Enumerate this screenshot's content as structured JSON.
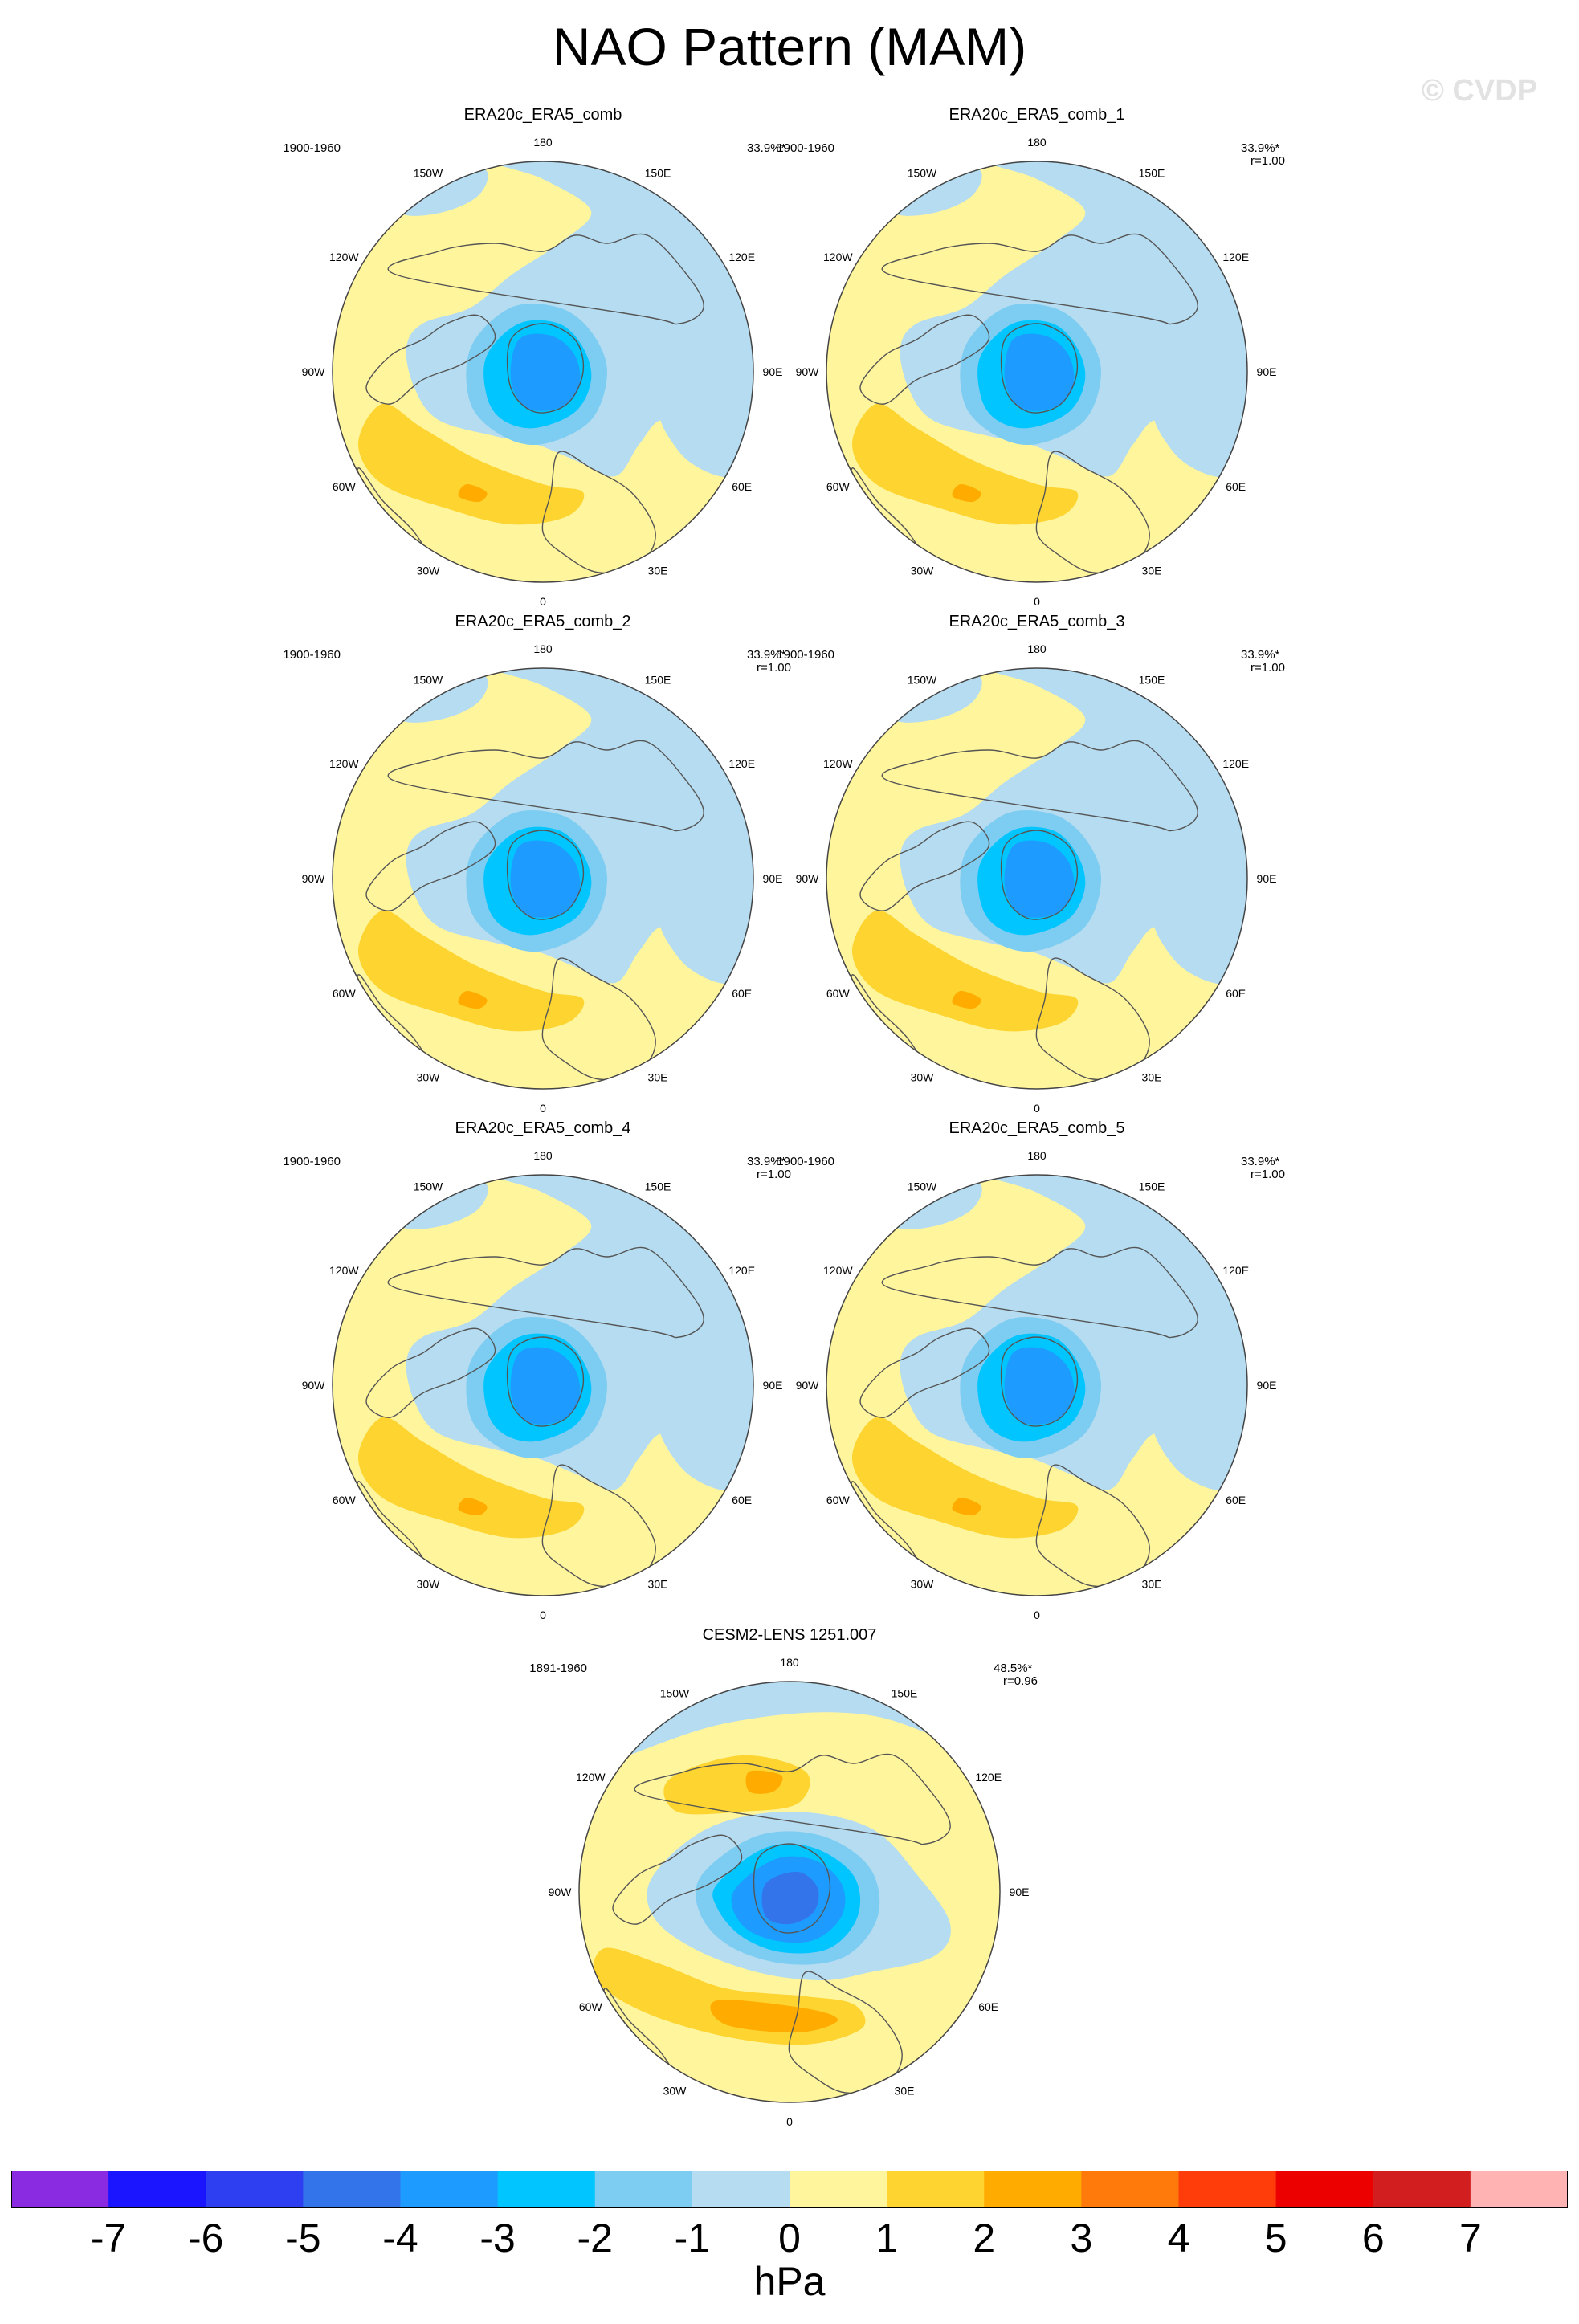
{
  "title": "NAO Pattern (MAM)",
  "watermark": "© CVDP",
  "panels": [
    {
      "name": "ERA20c_ERA5_comb",
      "period": "1900-1960",
      "pct": "33.9%*",
      "corr": "",
      "variant": "obs"
    },
    {
      "name": "ERA20c_ERA5_comb_1",
      "period": "1900-1960",
      "pct": "33.9%*",
      "corr": "r=1.00",
      "variant": "obs"
    },
    {
      "name": "ERA20c_ERA5_comb_2",
      "period": "1900-1960",
      "pct": "33.9%*",
      "corr": "r=1.00",
      "variant": "obs"
    },
    {
      "name": "ERA20c_ERA5_comb_3",
      "period": "1900-1960",
      "pct": "33.9%*",
      "corr": "r=1.00",
      "variant": "obs"
    },
    {
      "name": "ERA20c_ERA5_comb_4",
      "period": "1900-1960",
      "pct": "33.9%*",
      "corr": "r=1.00",
      "variant": "obs"
    },
    {
      "name": "ERA20c_ERA5_comb_5",
      "period": "1900-1960",
      "pct": "33.9%*",
      "corr": "r=1.00",
      "variant": "obs"
    },
    {
      "name": "CESM2-LENS 1251.007",
      "period": "1891-1960",
      "pct": "48.5%*",
      "corr": "r=0.96",
      "variant": "model"
    }
  ],
  "longitude_labels": [
    {
      "text": "180",
      "angle": 0
    },
    {
      "text": "150E",
      "angle": 30
    },
    {
      "text": "120E",
      "angle": 60
    },
    {
      "text": "90E",
      "angle": 90
    },
    {
      "text": "60E",
      "angle": 120
    },
    {
      "text": "30E",
      "angle": 150
    },
    {
      "text": "0",
      "angle": 180
    },
    {
      "text": "30W",
      "angle": 210
    },
    {
      "text": "60W",
      "angle": 240
    },
    {
      "text": "90W",
      "angle": 270
    },
    {
      "text": "120W",
      "angle": 300
    },
    {
      "text": "150W",
      "angle": 330
    }
  ],
  "colorbar": {
    "unit": "hPa",
    "ticks": [
      "-7",
      "-6",
      "-5",
      "-4",
      "-3",
      "-2",
      "-1",
      "0",
      "1",
      "2",
      "3",
      "4",
      "5",
      "6",
      "7"
    ],
    "colors": [
      "#8a2be2",
      "#1a14ff",
      "#2d3ff0",
      "#3474ea",
      "#1e9bff",
      "#00c5ff",
      "#7dcdf2",
      "#b5dcf0",
      "#fff59d",
      "#fdd430",
      "#ffab00",
      "#ff7a0a",
      "#ff3d0a",
      "#ec0000",
      "#d21e1e",
      "#ffb3b3"
    ]
  },
  "fill_colors": {
    "ocean_positive": "#fff59d",
    "neg1": "#b5dcf0",
    "neg2": "#7dcdf2",
    "neg3": "#00c5ff",
    "neg4": "#1e9bff",
    "neg5": "#3474ea",
    "pos2": "#fdd430",
    "pos3": "#ffab00",
    "coast": "#555555"
  }
}
